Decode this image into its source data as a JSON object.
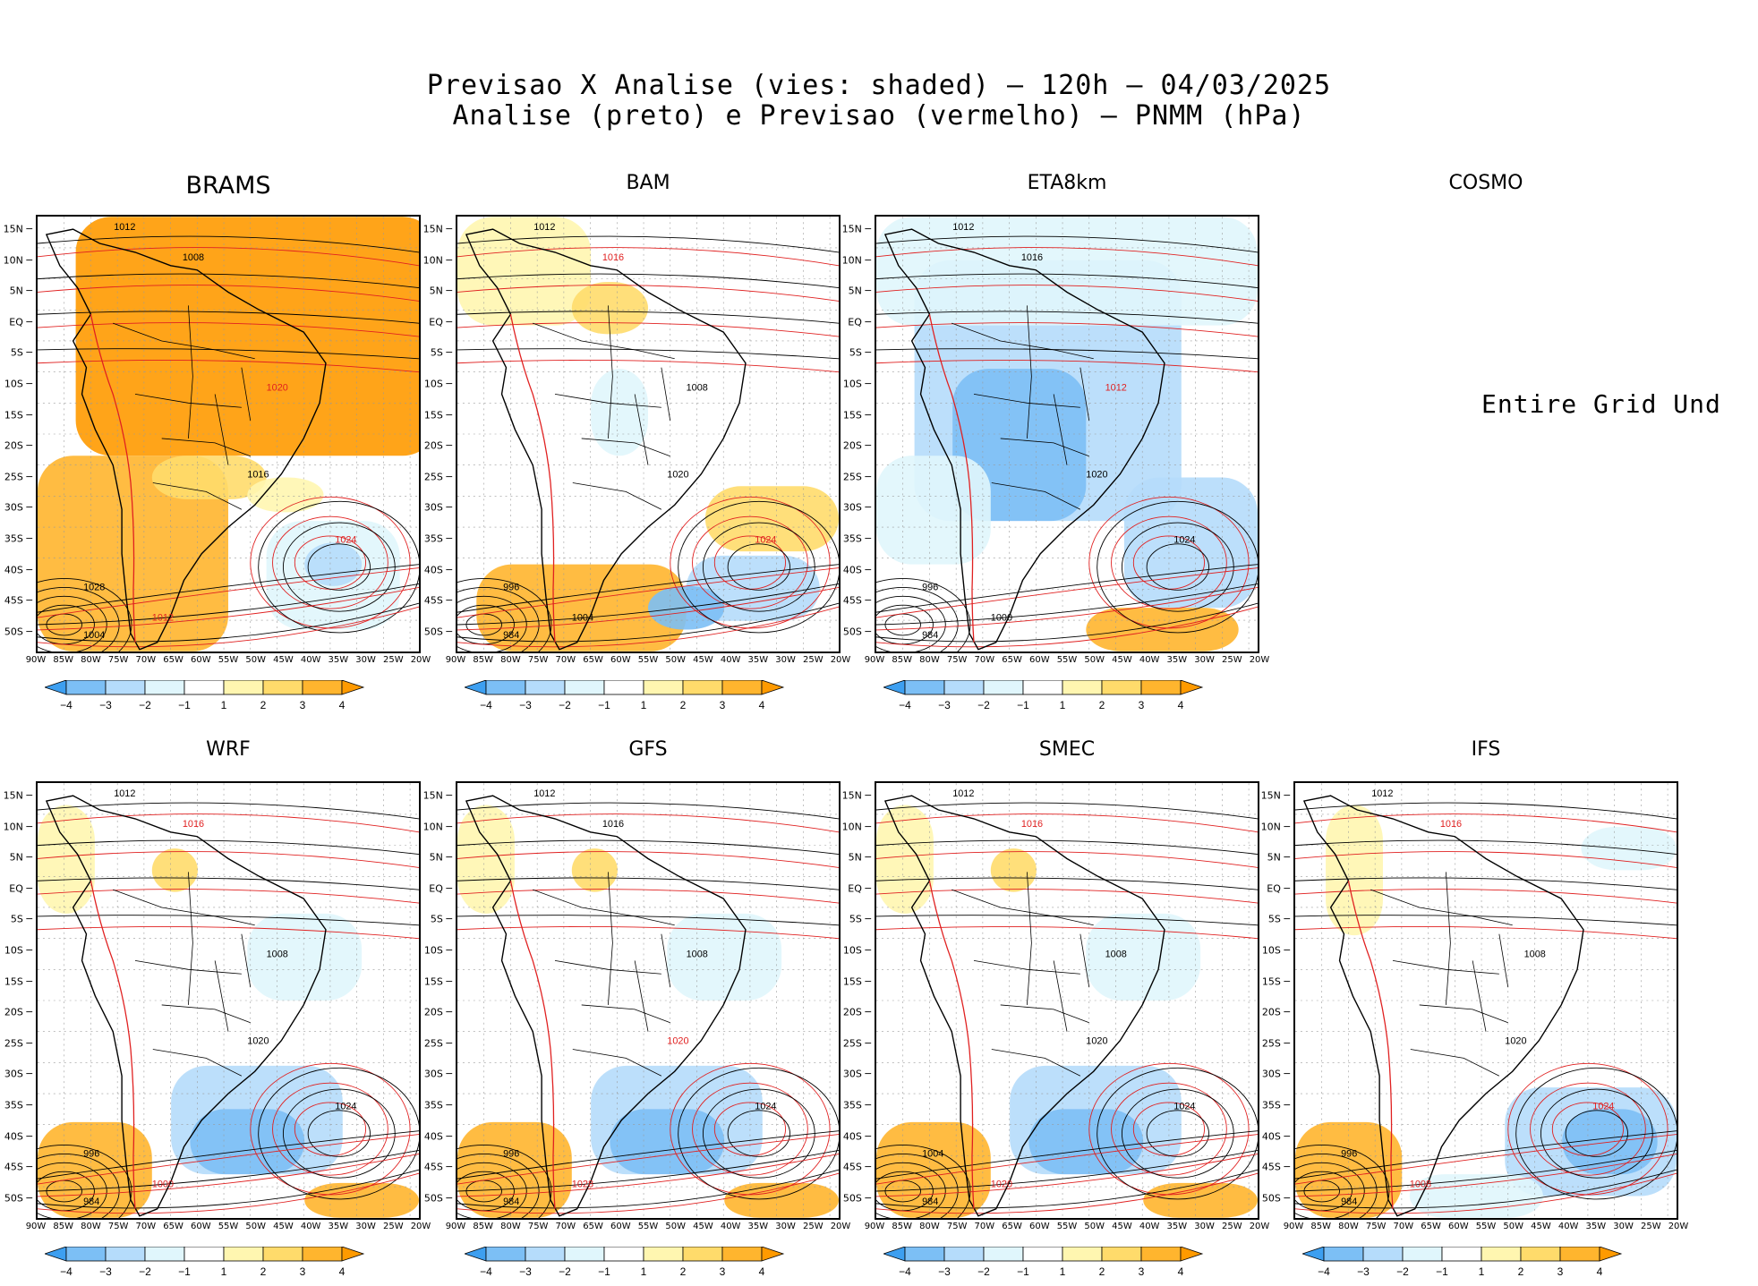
{
  "title": {
    "line1": "Previsao X Analise (vies: shaded) – 120h – 04/03/2025",
    "line2": "Analise (preto) e Previsao (vermelho) – PNMM (hPa)"
  },
  "lat_labels": [
    "15N",
    "10N",
    "5N",
    "EQ",
    "5S",
    "10S",
    "15S",
    "20S",
    "25S",
    "30S",
    "35S",
    "40S",
    "45S",
    "50S"
  ],
  "lon_labels": [
    "90W",
    "85W",
    "80W",
    "75W",
    "70W",
    "65W",
    "60W",
    "55W",
    "50W",
    "45W",
    "40W",
    "35W",
    "30W",
    "25W",
    "20W"
  ],
  "colorbar": {
    "labels": [
      "−4",
      "−3",
      "−2",
      "−1",
      "1",
      "2",
      "3",
      "4"
    ],
    "colors": [
      "#3d9ff0",
      "#7cbff5",
      "#b5dcfb",
      "#e0f6fc",
      "#ffffff",
      "#fff6b0",
      "#ffdb6b",
      "#ffb52e",
      "#ff9a00"
    ]
  },
  "colors": {
    "analysis_contour": "#000000",
    "forecast_contour": "#e02020"
  },
  "panels": [
    {
      "id": "brams",
      "name": "BRAMS",
      "big": true,
      "bias": "warm-strong",
      "labels": [
        {
          "t": "1012",
          "c": "k"
        },
        {
          "t": "1008",
          "c": "k"
        },
        {
          "t": "1020",
          "c": "r"
        },
        {
          "t": "1016",
          "c": "k"
        },
        {
          "t": "1024",
          "c": "r"
        },
        {
          "t": "1028",
          "c": "k"
        },
        {
          "t": "1004",
          "c": "k"
        },
        {
          "t": "1012",
          "c": "r"
        }
      ]
    },
    {
      "id": "bam",
      "name": "BAM",
      "big": false,
      "bias": "mixed-warm",
      "labels": [
        {
          "t": "1012",
          "c": "k"
        },
        {
          "t": "1016",
          "c": "r"
        },
        {
          "t": "1008",
          "c": "k"
        },
        {
          "t": "1020",
          "c": "k"
        },
        {
          "t": "1024",
          "c": "r"
        },
        {
          "t": "996",
          "c": "k"
        },
        {
          "t": "984",
          "c": "k"
        },
        {
          "t": "1004",
          "c": "k"
        }
      ]
    },
    {
      "id": "eta8km",
      "name": "ETA8km",
      "big": false,
      "bias": "cold",
      "labels": [
        {
          "t": "1012",
          "c": "k"
        },
        {
          "t": "1016",
          "c": "k"
        },
        {
          "t": "1012",
          "c": "r"
        },
        {
          "t": "1020",
          "c": "k"
        },
        {
          "t": "1024",
          "c": "k"
        },
        {
          "t": "996",
          "c": "k"
        },
        {
          "t": "984",
          "c": "k"
        },
        {
          "t": "1000",
          "c": "k"
        }
      ]
    },
    {
      "id": "cosmo",
      "name": "COSMO",
      "big": false,
      "bias": "none",
      "nodata": "Entire Grid Und",
      "labels": []
    },
    {
      "id": "wrf",
      "name": "WRF",
      "big": false,
      "bias": "mixed-cold",
      "labels": [
        {
          "t": "1012",
          "c": "k"
        },
        {
          "t": "1016",
          "c": "r"
        },
        {
          "t": "1008",
          "c": "k"
        },
        {
          "t": "1020",
          "c": "k"
        },
        {
          "t": "1024",
          "c": "k"
        },
        {
          "t": "996",
          "c": "k"
        },
        {
          "t": "984",
          "c": "k"
        },
        {
          "t": "1000",
          "c": "r"
        }
      ]
    },
    {
      "id": "gfs",
      "name": "GFS",
      "big": false,
      "bias": "mixed-cold",
      "labels": [
        {
          "t": "1012",
          "c": "k"
        },
        {
          "t": "1016",
          "c": "k"
        },
        {
          "t": "1008",
          "c": "k"
        },
        {
          "t": "1020",
          "c": "r"
        },
        {
          "t": "1024",
          "c": "k"
        },
        {
          "t": "996",
          "c": "k"
        },
        {
          "t": "984",
          "c": "k"
        },
        {
          "t": "1028",
          "c": "r"
        }
      ]
    },
    {
      "id": "smec",
      "name": "SMEC",
      "big": false,
      "bias": "mixed-cold",
      "labels": [
        {
          "t": "1012",
          "c": "k"
        },
        {
          "t": "1016",
          "c": "r"
        },
        {
          "t": "1008",
          "c": "k"
        },
        {
          "t": "1020",
          "c": "k"
        },
        {
          "t": "1024",
          "c": "k"
        },
        {
          "t": "1004",
          "c": "k"
        },
        {
          "t": "984",
          "c": "k"
        },
        {
          "t": "1020",
          "c": "r"
        }
      ]
    },
    {
      "id": "ifs",
      "name": "IFS",
      "big": false,
      "bias": "cold-south",
      "labels": [
        {
          "t": "1012",
          "c": "k"
        },
        {
          "t": "1016",
          "c": "r"
        },
        {
          "t": "1008",
          "c": "k"
        },
        {
          "t": "1020",
          "c": "k"
        },
        {
          "t": "1024",
          "c": "r"
        },
        {
          "t": "996",
          "c": "k"
        },
        {
          "t": "984",
          "c": "k"
        },
        {
          "t": "1008",
          "c": "r"
        }
      ]
    }
  ]
}
